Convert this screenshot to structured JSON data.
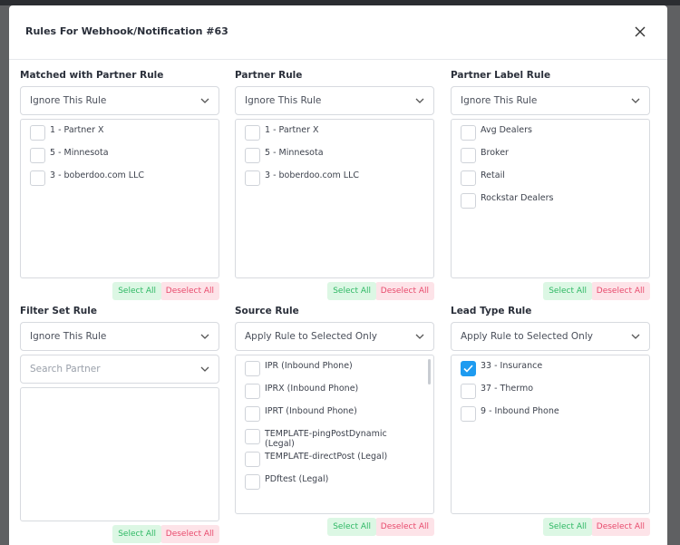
{
  "modal": {
    "title": "Rules For Webhook/Notification #63"
  },
  "panels": [
    {
      "label": "Matched with Partner Rule",
      "select": "Ignore This Rule",
      "options": [
        {
          "label": "1 - Partner X",
          "checked": false
        },
        {
          "label": "5 - Minnesota",
          "checked": false
        },
        {
          "label": "3 - boberdoo.com LLC",
          "checked": false
        }
      ],
      "select_all": "Select All",
      "deselect_all": "Deselect All"
    },
    {
      "label": "Partner Rule",
      "select": "Ignore This Rule",
      "options": [
        {
          "label": "1 - Partner X",
          "checked": false
        },
        {
          "label": "5 - Minnesota",
          "checked": false
        },
        {
          "label": "3 - boberdoo.com LLC",
          "checked": false
        }
      ],
      "select_all": "Select All",
      "deselect_all": "Deselect All"
    },
    {
      "label": "Partner Label Rule",
      "select": "Ignore This Rule",
      "options": [
        {
          "label": "Avg Dealers",
          "checked": false
        },
        {
          "label": "Broker",
          "checked": false
        },
        {
          "label": "Retail",
          "checked": false
        },
        {
          "label": "Rockstar Dealers",
          "checked": false
        }
      ],
      "select_all": "Select All",
      "deselect_all": "Deselect All"
    },
    {
      "label": "Filter Set Rule",
      "select": "Ignore This Rule",
      "search": "Search Partner",
      "options": [],
      "select_all": "Select All",
      "deselect_all": "Deselect All"
    },
    {
      "label": "Source Rule",
      "select": "Apply Rule to Selected Only",
      "options": [
        {
          "label": "IPR (Inbound Phone)",
          "checked": false
        },
        {
          "label": "IPRX (Inbound Phone)",
          "checked": false
        },
        {
          "label": "IPRT (Inbound Phone)",
          "checked": false
        },
        {
          "label": "TEMPLATE-pingPostDynamic (Legal)",
          "checked": false
        },
        {
          "label": "TEMPLATE-directPost (Legal)",
          "checked": false
        },
        {
          "label": "PDftest (Legal)",
          "checked": false
        }
      ],
      "select_all": "Select All",
      "deselect_all": "Deselect All"
    },
    {
      "label": "Lead Type Rule",
      "select": "Apply Rule to Selected Only",
      "options": [
        {
          "label": "33 - Insurance",
          "checked": true
        },
        {
          "label": "37 - Thermo",
          "checked": false
        },
        {
          "label": "9 - Inbound Phone",
          "checked": false
        }
      ],
      "select_all": "Select All",
      "deselect_all": "Deselect All"
    }
  ]
}
